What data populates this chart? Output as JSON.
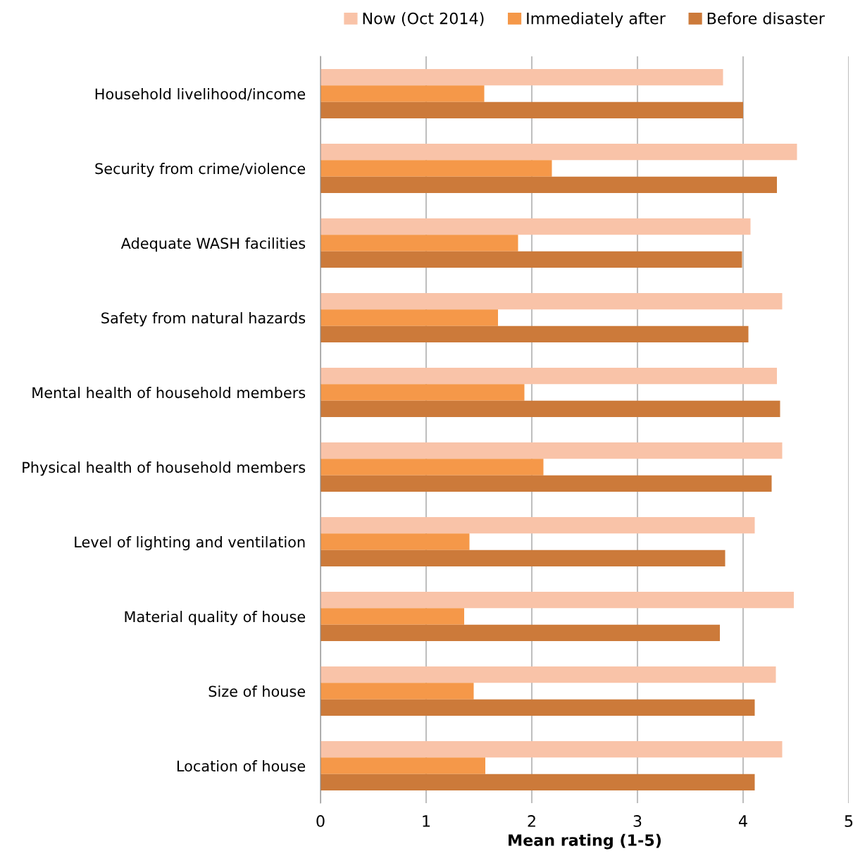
{
  "chart_data": {
    "type": "bar",
    "orientation": "horizontal",
    "xlabel": "Mean rating (1-5)",
    "categories": [
      "Household livelihood/income",
      "Security from crime/violence",
      "Adequate WASH facilities",
      "Safety from natural hazards",
      "Mental health of household members",
      "Physical health of household members",
      "Level of lighting and ventilation",
      "Material quality of house",
      "Size of house",
      "Location of house"
    ],
    "series": [
      {
        "name": "Now (Oct 2014)",
        "color": "#f9c3a8",
        "values": [
          3.81,
          4.51,
          4.07,
          4.37,
          4.32,
          4.37,
          4.11,
          4.48,
          4.31,
          4.37
        ]
      },
      {
        "name": "Immediately after",
        "color": "#f59849",
        "values": [
          1.55,
          2.19,
          1.87,
          1.68,
          1.93,
          2.11,
          1.41,
          1.36,
          1.45,
          1.56
        ]
      },
      {
        "name": "Before disaster",
        "color": "#cc7a3a",
        "values": [
          4.0,
          4.32,
          3.99,
          4.05,
          4.35,
          4.27,
          3.83,
          3.78,
          4.11,
          4.11
        ]
      }
    ],
    "xlim": [
      0,
      5
    ],
    "xticks": [
      0,
      1,
      2,
      3,
      4,
      5
    ],
    "grid": "x",
    "legend": "top"
  }
}
